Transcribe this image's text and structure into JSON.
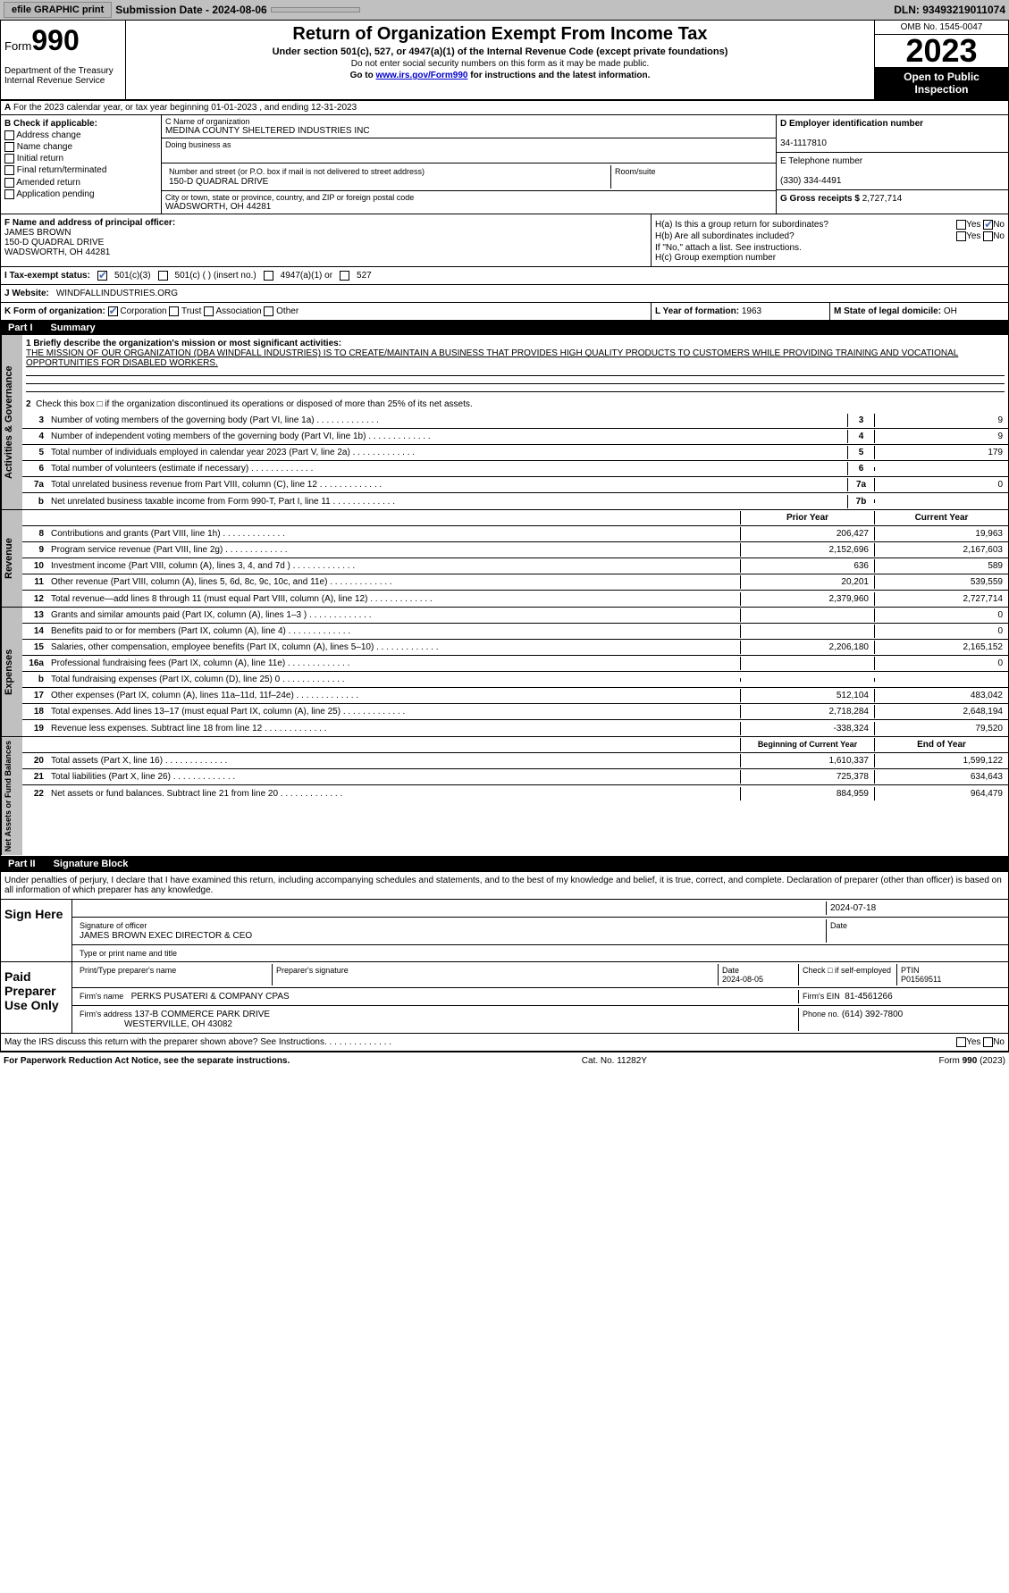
{
  "topbar": {
    "efile": "efile GRAPHIC print",
    "submission": "Submission Date - 2024-08-06",
    "dln": "DLN: 93493219011074"
  },
  "header": {
    "form_label": "Form",
    "form_num": "990",
    "dept": "Department of the Treasury Internal Revenue Service",
    "title": "Return of Organization Exempt From Income Tax",
    "subtitle": "Under section 501(c), 527, or 4947(a)(1) of the Internal Revenue Code (except private foundations)",
    "note1": "Do not enter social security numbers on this form as it may be made public.",
    "note2_pre": "Go to ",
    "note2_link": "www.irs.gov/Form990",
    "note2_post": " for instructions and the latest information.",
    "omb": "OMB No. 1545-0047",
    "year": "2023",
    "open": "Open to Public Inspection"
  },
  "row_a": "For the 2023 calendar year, or tax year beginning 01-01-2023   , and ending 12-31-2023",
  "box_b": {
    "title": "B Check if applicable:",
    "items": [
      "Address change",
      "Name change",
      "Initial return",
      "Final return/terminated",
      "Amended return",
      "Application pending"
    ]
  },
  "box_c": {
    "name_lbl": "C Name of organization",
    "name": "MEDINA COUNTY SHELTERED INDUSTRIES INC",
    "dba_lbl": "Doing business as",
    "dba": "",
    "street_lbl": "Number and street (or P.O. box if mail is not delivered to street address)",
    "street": "150-D QUADRAL DRIVE",
    "suite_lbl": "Room/suite",
    "city_lbl": "City or town, state or province, country, and ZIP or foreign postal code",
    "city": "WADSWORTH, OH  44281"
  },
  "box_d": {
    "lbl": "D Employer identification number",
    "val": "34-1117810"
  },
  "box_e": {
    "lbl": "E Telephone number",
    "val": "(330) 334-4491"
  },
  "box_g": {
    "lbl": "G Gross receipts $",
    "val": "2,727,714"
  },
  "box_f": {
    "lbl": "F Name and address of principal officer:",
    "name": "JAMES BROWN",
    "addr1": "150-D QUADRAL DRIVE",
    "addr2": "WADSWORTH, OH  44281"
  },
  "box_h": {
    "a": "H(a)  Is this a group return for subordinates?",
    "b": "H(b)  Are all subordinates included?",
    "b_note": "If \"No,\" attach a list. See instructions.",
    "c": "H(c)  Group exemption number"
  },
  "row_i": {
    "lbl": "I   Tax-exempt status:",
    "c3": "501(c)(3)",
    "c": "501(c) (  ) (insert no.)",
    "a1": "4947(a)(1) or",
    "527": "527"
  },
  "row_j": {
    "lbl": "J   Website:",
    "val": "WINDFALLINDUSTRIES.ORG"
  },
  "row_k": {
    "lbl": "K Form of organization:",
    "corp": "Corporation",
    "trust": "Trust",
    "assoc": "Association",
    "other": "Other"
  },
  "row_l": {
    "lbl": "L Year of formation:",
    "val": "1963"
  },
  "row_m": {
    "lbl": "M State of legal domicile:",
    "val": "OH"
  },
  "part1": {
    "title": "Part I",
    "name": "Summary",
    "q1_lbl": "1   Briefly describe the organization's mission or most significant activities:",
    "q1_text": "THE MISSION OF OUR ORGANIZATION (DBA WINDFALL INDUSTRIES) IS TO CREATE/MAINTAIN A BUSINESS THAT PROVIDES HIGH QUALITY PRODUCTS TO CUSTOMERS WHILE PROVIDING TRAINING AND VOCATIONAL OPPORTUNITIES FOR DISABLED WORKERS.",
    "q2": "Check this box □ if the organization discontinued its operations or disposed of more than 25% of its net assets.",
    "vtab1": "Activities & Governance",
    "vtab2": "Revenue",
    "vtab3": "Expenses",
    "vtab4": "Net Assets or Fund Balances",
    "lines_gov": [
      {
        "n": "3",
        "d": "Number of voting members of the governing body (Part VI, line 1a)",
        "ref": "3",
        "v": "9"
      },
      {
        "n": "4",
        "d": "Number of independent voting members of the governing body (Part VI, line 1b)",
        "ref": "4",
        "v": "9"
      },
      {
        "n": "5",
        "d": "Total number of individuals employed in calendar year 2023 (Part V, line 2a)",
        "ref": "5",
        "v": "179"
      },
      {
        "n": "6",
        "d": "Total number of volunteers (estimate if necessary)",
        "ref": "6",
        "v": ""
      },
      {
        "n": "7a",
        "d": "Total unrelated business revenue from Part VIII, column (C), line 12",
        "ref": "7a",
        "v": "0"
      },
      {
        "n": "b",
        "d": "Net unrelated business taxable income from Form 990-T, Part I, line 11",
        "ref": "7b",
        "v": ""
      }
    ],
    "col_prior": "Prior Year",
    "col_current": "Current Year",
    "lines_rev": [
      {
        "n": "8",
        "d": "Contributions and grants (Part VIII, line 1h)",
        "p": "206,427",
        "c": "19,963"
      },
      {
        "n": "9",
        "d": "Program service revenue (Part VIII, line 2g)",
        "p": "2,152,696",
        "c": "2,167,603"
      },
      {
        "n": "10",
        "d": "Investment income (Part VIII, column (A), lines 3, 4, and 7d )",
        "p": "636",
        "c": "589"
      },
      {
        "n": "11",
        "d": "Other revenue (Part VIII, column (A), lines 5, 6d, 8c, 9c, 10c, and 11e)",
        "p": "20,201",
        "c": "539,559"
      },
      {
        "n": "12",
        "d": "Total revenue—add lines 8 through 11 (must equal Part VIII, column (A), line 12)",
        "p": "2,379,960",
        "c": "2,727,714"
      }
    ],
    "lines_exp": [
      {
        "n": "13",
        "d": "Grants and similar amounts paid (Part IX, column (A), lines 1–3 )",
        "p": "",
        "c": "0"
      },
      {
        "n": "14",
        "d": "Benefits paid to or for members (Part IX, column (A), line 4)",
        "p": "",
        "c": "0"
      },
      {
        "n": "15",
        "d": "Salaries, other compensation, employee benefits (Part IX, column (A), lines 5–10)",
        "p": "2,206,180",
        "c": "2,165,152"
      },
      {
        "n": "16a",
        "d": "Professional fundraising fees (Part IX, column (A), line 11e)",
        "p": "",
        "c": "0"
      },
      {
        "n": "b",
        "d": "Total fundraising expenses (Part IX, column (D), line 25) 0",
        "p": "SHADE",
        "c": "SHADE"
      },
      {
        "n": "17",
        "d": "Other expenses (Part IX, column (A), lines 11a–11d, 11f–24e)",
        "p": "512,104",
        "c": "483,042"
      },
      {
        "n": "18",
        "d": "Total expenses. Add lines 13–17 (must equal Part IX, column (A), line 25)",
        "p": "2,718,284",
        "c": "2,648,194"
      },
      {
        "n": "19",
        "d": "Revenue less expenses. Subtract line 18 from line 12",
        "p": "-338,324",
        "c": "79,520"
      }
    ],
    "col_begin": "Beginning of Current Year",
    "col_end": "End of Year",
    "lines_net": [
      {
        "n": "20",
        "d": "Total assets (Part X, line 16)",
        "p": "1,610,337",
        "c": "1,599,122"
      },
      {
        "n": "21",
        "d": "Total liabilities (Part X, line 26)",
        "p": "725,378",
        "c": "634,643"
      },
      {
        "n": "22",
        "d": "Net assets or fund balances. Subtract line 21 from line 20",
        "p": "884,959",
        "c": "964,479"
      }
    ]
  },
  "part2": {
    "title": "Part II",
    "name": "Signature Block",
    "decl": "Under penalties of perjury, I declare that I have examined this return, including accompanying schedules and statements, and to the best of my knowledge and belief, it is true, correct, and complete. Declaration of preparer (other than officer) is based on all information of which preparer has any knowledge.",
    "sign_here": "Sign Here",
    "sig_officer_lbl": "Signature of officer",
    "sig_date": "2024-07-18",
    "sig_name": "JAMES BROWN  EXEC DIRECTOR & CEO",
    "sig_name_lbl": "Type or print name and title",
    "paid": "Paid Preparer Use Only",
    "prep_name_lbl": "Print/Type preparer's name",
    "prep_sig_lbl": "Preparer's signature",
    "prep_date_lbl": "Date",
    "prep_date": "2024-08-05",
    "prep_check_lbl": "Check □ if self-employed",
    "ptin_lbl": "PTIN",
    "ptin": "P01569511",
    "firm_name_lbl": "Firm's name",
    "firm_name": "PERKS PUSATERI & COMPANY CPAS",
    "firm_ein_lbl": "Firm's EIN",
    "firm_ein": "81-4561266",
    "firm_addr_lbl": "Firm's address",
    "firm_addr1": "137-B COMMERCE PARK DRIVE",
    "firm_addr2": "WESTERVILLE, OH  43082",
    "phone_lbl": "Phone no.",
    "phone": "(614) 392-7800",
    "discuss": "May the IRS discuss this return with the preparer shown above? See Instructions."
  },
  "footer": {
    "left": "For Paperwork Reduction Act Notice, see the separate instructions.",
    "mid": "Cat. No. 11282Y",
    "right": "Form 990 (2023)"
  }
}
